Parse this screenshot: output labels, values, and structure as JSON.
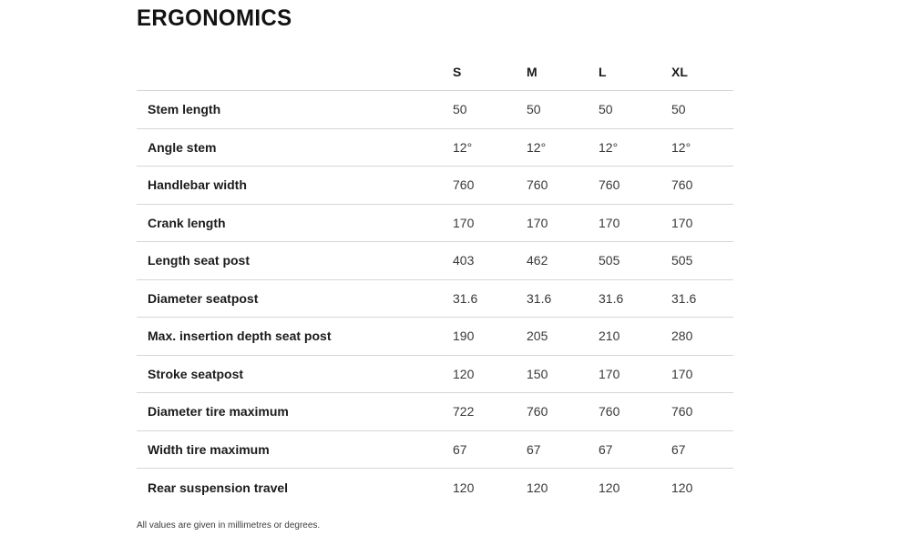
{
  "page": {
    "title": "ERGONOMICS",
    "footnote": "All values are given in millimetres or degrees."
  },
  "table": {
    "columns": [
      "S",
      "M",
      "L",
      "XL"
    ],
    "rows": [
      {
        "label": "Stem length",
        "values": [
          "50",
          "50",
          "50",
          "50"
        ]
      },
      {
        "label": "Angle stem",
        "values": [
          "12°",
          "12°",
          "12°",
          "12°"
        ]
      },
      {
        "label": "Handlebar width",
        "values": [
          "760",
          "760",
          "760",
          "760"
        ]
      },
      {
        "label": "Crank length",
        "values": [
          "170",
          "170",
          "170",
          "170"
        ]
      },
      {
        "label": "Length seat post",
        "values": [
          "403",
          "462",
          "505",
          "505"
        ]
      },
      {
        "label": "Diameter seatpost",
        "values": [
          "31.6",
          "31.6",
          "31.6",
          "31.6"
        ]
      },
      {
        "label": "Max. insertion depth seat post",
        "values": [
          "190",
          "205",
          "210",
          "280"
        ]
      },
      {
        "label": "Stroke seatpost",
        "values": [
          "120",
          "150",
          "170",
          "170"
        ]
      },
      {
        "label": "Diameter tire maximum",
        "values": [
          "722",
          "760",
          "760",
          "760"
        ]
      },
      {
        "label": "Width tire maximum",
        "values": [
          "67",
          "67",
          "67",
          "67"
        ]
      },
      {
        "label": "Rear suspension travel",
        "values": [
          "120",
          "120",
          "120",
          "120"
        ]
      }
    ]
  },
  "colors": {
    "background": "#ffffff",
    "heading_text": "#121212",
    "label_text": "#1b1b1b",
    "value_text": "#383838",
    "divider": "#d6d6d6",
    "footnote_text": "#3c3c3c"
  }
}
